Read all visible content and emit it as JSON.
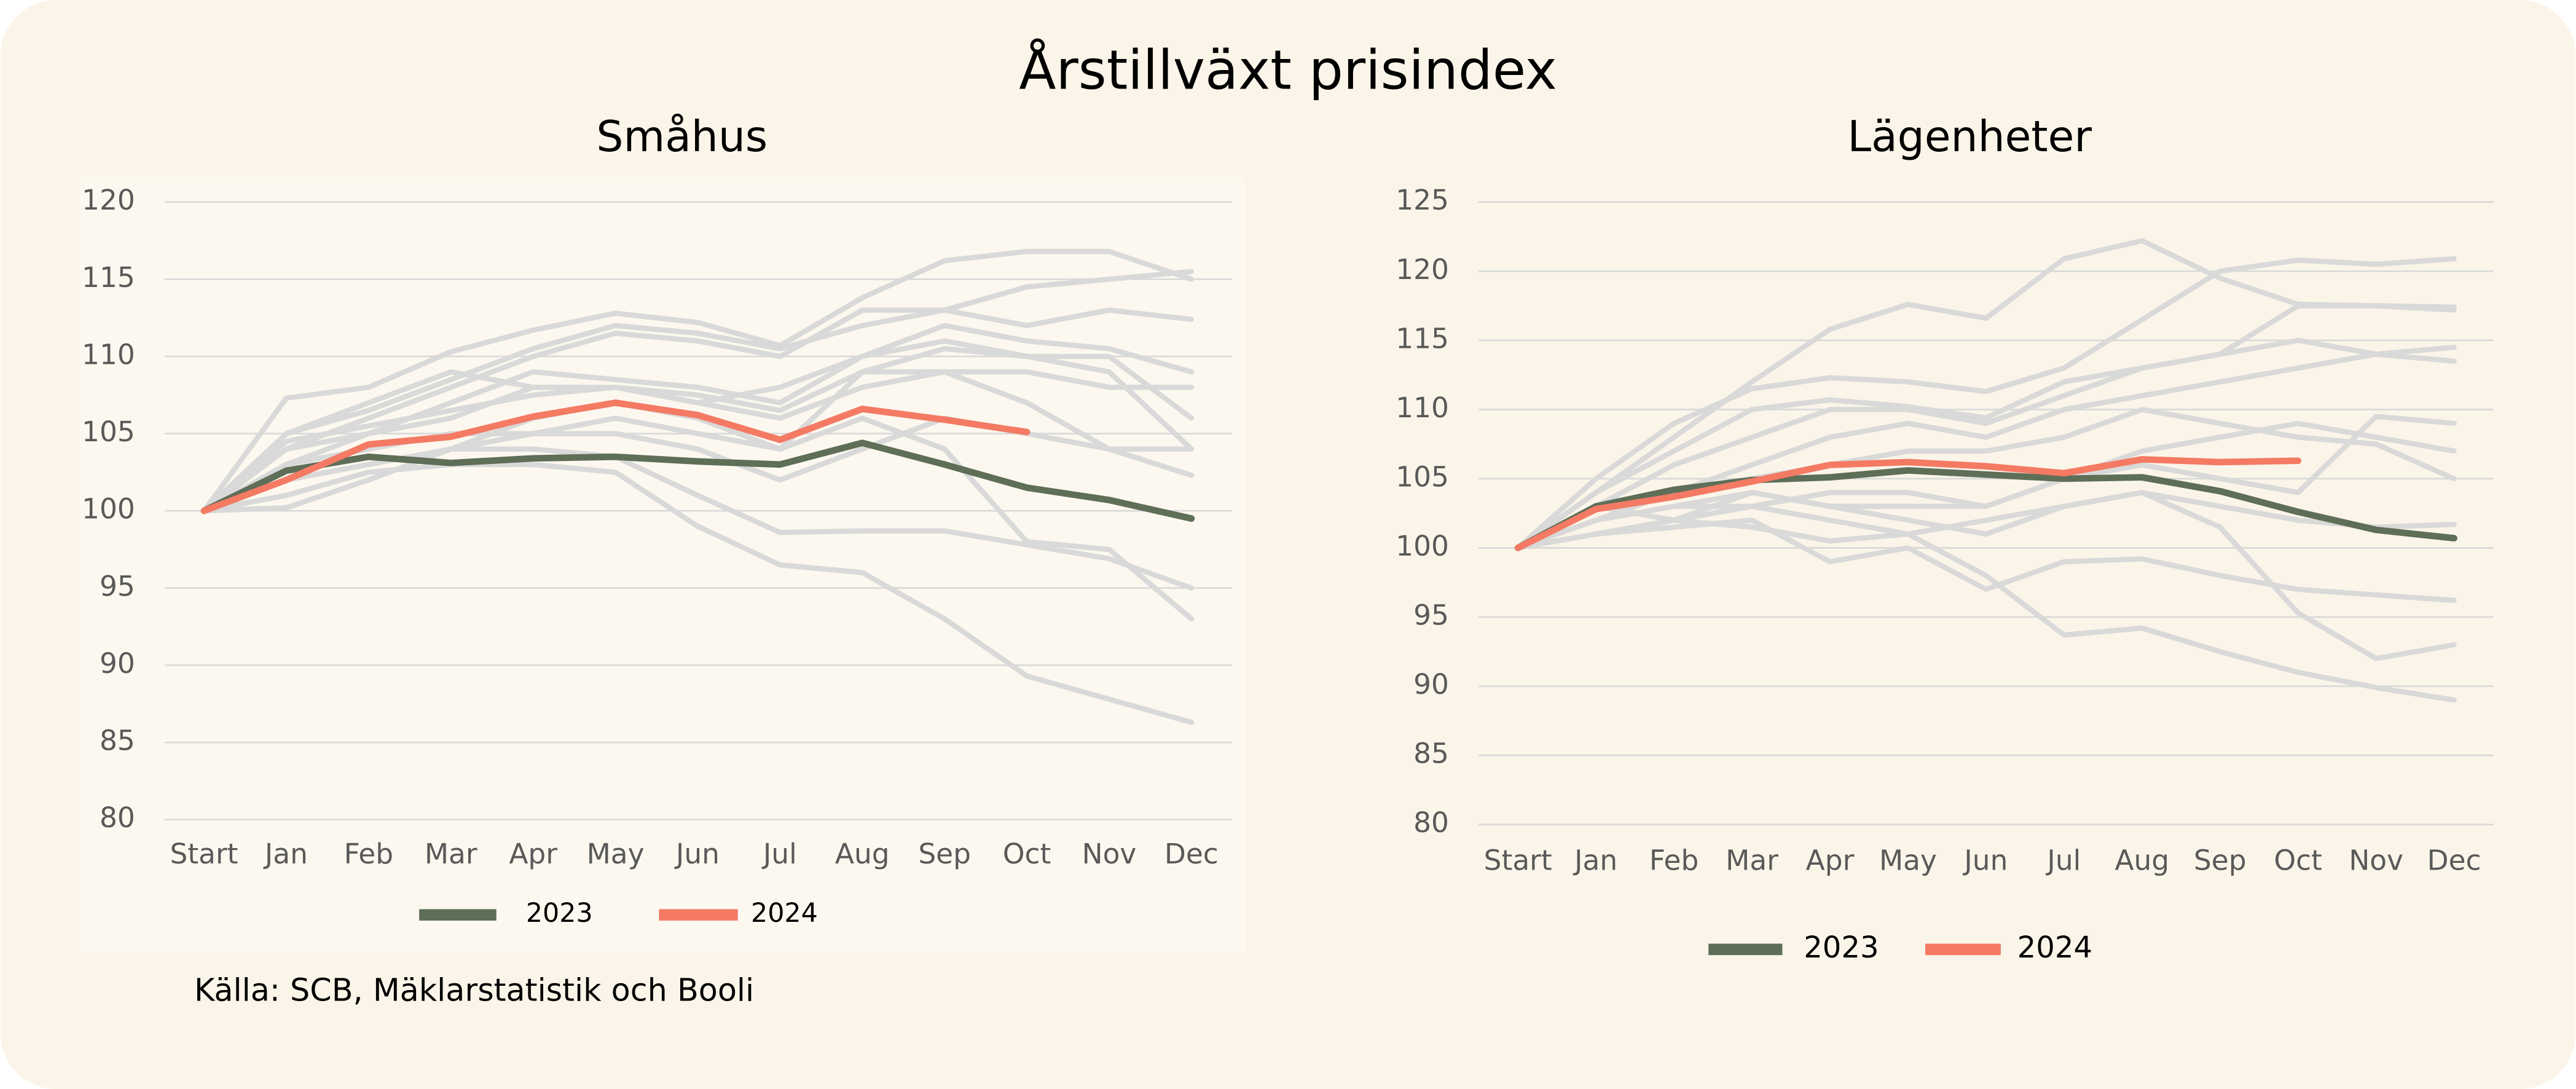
{
  "title": "Årstillväxt prisindex",
  "source": "Källa: SCB, Mäklarstatistik och Booli",
  "chart_data": [
    {
      "type": "line",
      "title": "Småhus",
      "categories": [
        "Start",
        "Jan",
        "Feb",
        "Mar",
        "Apr",
        "May",
        "Jun",
        "Jul",
        "Aug",
        "Sep",
        "Oct",
        "Nov",
        "Dec"
      ],
      "ylim": [
        80,
        120
      ],
      "yticks": [
        80,
        85,
        90,
        95,
        100,
        105,
        110,
        115,
        120
      ],
      "grid": true,
      "series": [
        {
          "color": "#d9d9d9",
          "values": [
            100,
            107.3,
            108,
            110.3,
            111.7,
            112.8,
            112.2,
            110.7,
            113.8,
            116.2,
            116.8,
            116.8,
            115.0
          ]
        },
        {
          "color": "#d9d9d9",
          "values": [
            100,
            105,
            106.5,
            108.5,
            110.5,
            112,
            111.5,
            110.5,
            112,
            113,
            114.5,
            115,
            115.5
          ]
        },
        {
          "color": "#d9d9d9",
          "values": [
            100,
            104,
            106,
            108,
            110,
            111.5,
            111,
            110,
            113,
            113,
            112,
            113,
            112.4
          ]
        },
        {
          "color": "#d9d9d9",
          "values": [
            100,
            103,
            105,
            107,
            109,
            108.5,
            108,
            107,
            110,
            112,
            111,
            110.5,
            109
          ]
        },
        {
          "color": "#d9d9d9",
          "values": [
            100,
            104,
            105,
            106,
            108,
            108,
            107,
            106,
            108,
            109,
            109,
            108,
            108
          ]
        },
        {
          "color": "#d9d9d9",
          "values": [
            100,
            103,
            104,
            105,
            105,
            105,
            104,
            102,
            104,
            106,
            105,
            104,
            104
          ]
        },
        {
          "color": "#d9d9d9",
          "values": [
            100,
            102,
            103,
            104,
            104,
            103.5,
            101,
            98.6,
            98.7,
            98.7,
            97.8,
            96.9,
            95
          ]
        },
        {
          "color": "#d9d9d9",
          "values": [
            100,
            101,
            102.5,
            103,
            103,
            102.5,
            99,
            96.5,
            96,
            93,
            89.3,
            87.8,
            86.3
          ]
        },
        {
          "color": "#d9d9d9",
          "values": [
            100,
            102,
            103,
            104,
            105,
            106,
            105,
            104,
            106,
            104,
            98,
            97.5,
            93
          ]
        },
        {
          "color": "#d9d9d9",
          "values": [
            100,
            100.2,
            102,
            104,
            106,
            107,
            106,
            104,
            109,
            109,
            107,
            104,
            102.3
          ]
        },
        {
          "color": "#d9d9d9",
          "values": [
            100,
            105,
            107,
            109,
            108,
            108,
            107,
            108,
            110,
            111,
            110,
            110,
            106
          ]
        },
        {
          "color": "#d9d9d9",
          "values": [
            100,
            104.5,
            105.5,
            106.5,
            107.5,
            108,
            107.5,
            106.5,
            109,
            110.5,
            110,
            109,
            104
          ]
        },
        {
          "name": "2023",
          "color": "#5e6e57",
          "values": [
            100,
            102.6,
            103.5,
            103.1,
            103.4,
            103.5,
            103.2,
            103.0,
            104.4,
            103.0,
            101.5,
            100.7,
            99.5
          ]
        },
        {
          "name": "2024",
          "color": "#f47a64",
          "values": [
            100,
            102.0,
            104.3,
            104.8,
            106.1,
            107.0,
            106.2,
            104.6,
            106.6,
            105.9,
            105.1,
            null,
            null
          ]
        }
      ]
    },
    {
      "type": "line",
      "title": "Lägenheter",
      "categories": [
        "Start",
        "Jan",
        "Feb",
        "Mar",
        "Apr",
        "May",
        "Jun",
        "Jul",
        "Aug",
        "Sep",
        "Oct",
        "Nov",
        "Dec"
      ],
      "ylim": [
        80,
        125
      ],
      "yticks": [
        80,
        85,
        90,
        95,
        100,
        105,
        110,
        115,
        120,
        125
      ],
      "grid": true,
      "series": [
        {
          "color": "#d9d9d9",
          "values": [
            100,
            104,
            108,
            112,
            115.8,
            117.6,
            116.6,
            120.9,
            122.2,
            119.5,
            117.6,
            117.5,
            117.2
          ]
        },
        {
          "color": "#d9d9d9",
          "values": [
            100,
            105,
            109,
            111.5,
            112.3,
            112,
            111.3,
            113,
            116.5,
            120,
            120.8,
            120.5,
            120.9
          ]
        },
        {
          "color": "#d9d9d9",
          "values": [
            100,
            104,
            107,
            110,
            110.7,
            110.2,
            109.4,
            112,
            113,
            114,
            117.5,
            117.5,
            117.4
          ]
        },
        {
          "color": "#d9d9d9",
          "values": [
            100,
            103,
            106,
            108,
            110,
            110,
            109,
            111,
            113,
            114,
            115,
            114,
            113.5
          ]
        },
        {
          "color": "#d9d9d9",
          "values": [
            100,
            102,
            104,
            106,
            108,
            109,
            108,
            110,
            111,
            112,
            113,
            114,
            114.5
          ]
        },
        {
          "color": "#d9d9d9",
          "values": [
            100,
            101,
            102,
            103,
            104,
            104,
            103,
            105,
            107,
            108,
            109,
            108,
            107
          ]
        },
        {
          "color": "#d9d9d9",
          "values": [
            100,
            102,
            103,
            103,
            102,
            101,
            98,
            93.7,
            94.2,
            92.5,
            91,
            89.9,
            89
          ]
        },
        {
          "color": "#d9d9d9",
          "values": [
            100,
            101,
            101.5,
            102,
            99,
            100,
            97,
            99,
            99.2,
            98,
            97,
            96.6,
            96.2
          ]
        },
        {
          "color": "#d9d9d9",
          "values": [
            100,
            102,
            103,
            104,
            103,
            102,
            101,
            103,
            104,
            101.5,
            95.3,
            92,
            93
          ]
        },
        {
          "color": "#d9d9d9",
          "values": [
            100,
            103,
            102,
            101.5,
            100.5,
            101,
            102,
            103,
            104,
            103,
            102,
            101.5,
            101.7
          ]
        },
        {
          "color": "#d9d9d9",
          "values": [
            100,
            102,
            104,
            105,
            106,
            107,
            107,
            108,
            110,
            109,
            108,
            107.5,
            105
          ]
        },
        {
          "color": "#d9d9d9",
          "values": [
            100,
            101,
            102,
            104,
            103,
            103,
            103,
            105,
            106,
            105,
            104,
            109.5,
            109
          ]
        },
        {
          "name": "2023",
          "color": "#5e6e57",
          "values": [
            100,
            103,
            104.2,
            104.9,
            105.1,
            105.6,
            105.3,
            105.0,
            105.1,
            104.1,
            102.6,
            101.3,
            100.7
          ]
        },
        {
          "name": "2024",
          "color": "#f47a64",
          "values": [
            100,
            102.8,
            103.7,
            104.8,
            106.0,
            106.2,
            105.9,
            105.4,
            106.4,
            106.2,
            106.3,
            null,
            null
          ]
        }
      ]
    }
  ]
}
